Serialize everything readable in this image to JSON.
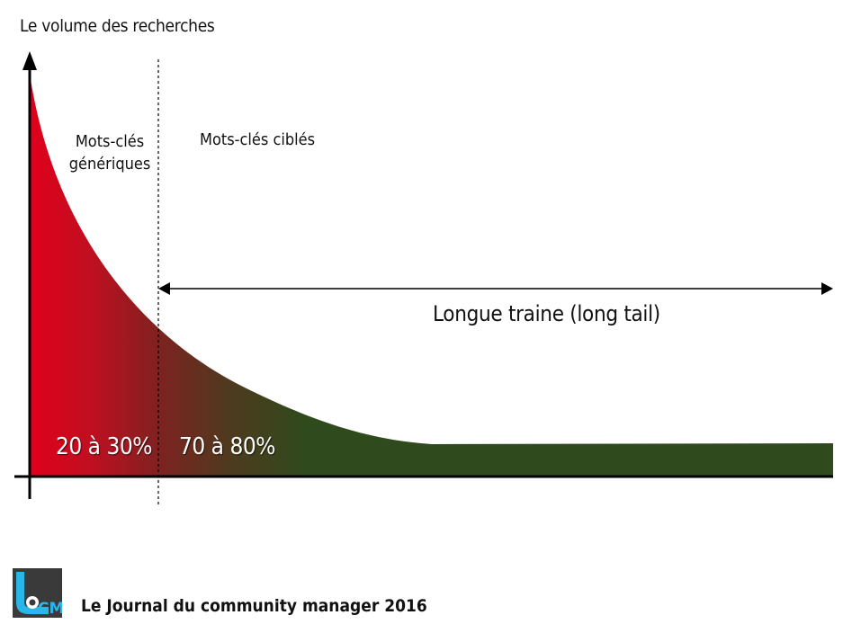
{
  "diagram": {
    "y_axis_label": "Le volume des recherches",
    "generic_label_line1": "Mots-clés",
    "generic_label_line2": "génériques",
    "targeted_label": "Mots-clés ciblés",
    "long_tail_label": "Longue traine (long tail)",
    "generic_share": "20 à 30%",
    "targeted_share": "70 à 80%",
    "colors": {
      "head": "#e0001b",
      "tail": "#2f4a1c",
      "axis": "#000000"
    }
  },
  "footer": {
    "logo_text": "CM",
    "logo_icon": "jcm-logo-icon",
    "text": "Le Journal du community manager 2016"
  }
}
